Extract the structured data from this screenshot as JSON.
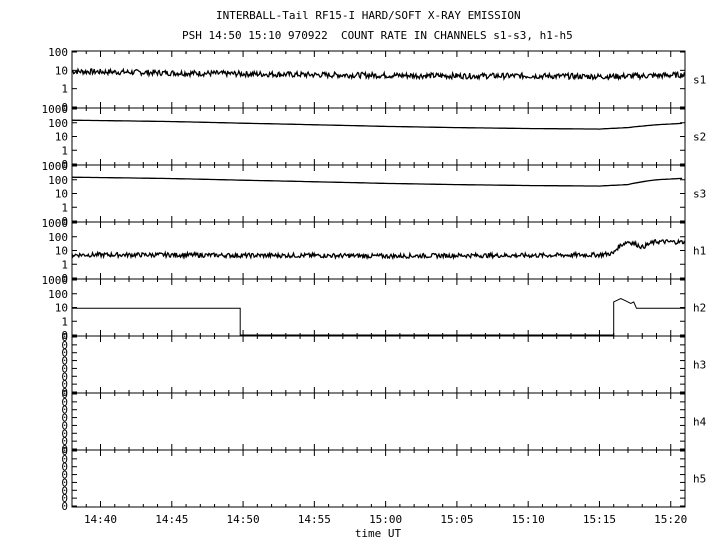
{
  "header": {
    "title": "INTERBALL-Tail RF15-I HARD/SOFT X-RAY EMISSION",
    "subtitle": "PSH 14:50 15:10 970922  COUNT RATE IN CHANNELS s1-s3, h1-h5"
  },
  "chart_data": {
    "type": "line",
    "title": "INTERBALL-Tail RF15-I HARD/SOFT X-RAY EMISSION",
    "subtitle": "PSH 14:50 15:10 970922  COUNT RATE IN CHANNELS s1-s3, h1-h5",
    "xlabel": "time UT",
    "x_ticks": [
      "14:40",
      "14:45",
      "14:50",
      "14:55",
      "15:00",
      "15:05",
      "15:10",
      "15:15",
      "15:20"
    ],
    "x_tick_minutes": [
      0,
      5,
      10,
      15,
      20,
      25,
      30,
      35,
      40
    ],
    "xlim_minutes": [
      -2.0,
      41.0
    ],
    "y_scale": "log",
    "grid": false,
    "panels": [
      {
        "name": "s1",
        "ylabels": [
          "100",
          "10",
          "1",
          "0"
        ],
        "ylim": [
          0.5,
          200
        ],
        "series": [
          {
            "x": [
              -2,
              0,
              5,
              10,
              15,
              20,
              25,
              30,
              35,
              38,
              41
            ],
            "y": [
              25,
              24,
              21,
              19,
              17,
              16,
              15,
              15,
              14,
              15,
              17
            ]
          }
        ]
      },
      {
        "name": "s2",
        "ylabels": [
          "1000",
          "100",
          "10",
          "1",
          "0"
        ],
        "ylim": [
          0.5,
          1000
        ],
        "series": [
          {
            "x": [
              -2,
              0,
              5,
              10,
              15,
              20,
              25,
              30,
              35,
              37,
              39,
              41
            ],
            "y": [
              230,
              220,
              190,
              150,
              120,
              95,
              80,
              70,
              65,
              80,
              120,
              150
            ]
          }
        ]
      },
      {
        "name": "s3",
        "ylabels": [
          "1000",
          "100",
          "10",
          "1",
          "0"
        ],
        "ylim": [
          0.5,
          1000
        ],
        "series": [
          {
            "x": [
              -2,
              0,
              5,
              10,
              15,
              20,
              25,
              30,
              35,
              37,
              39,
              41
            ],
            "y": [
              230,
              220,
              190,
              150,
              120,
              95,
              80,
              70,
              65,
              80,
              160,
              200
            ]
          }
        ]
      },
      {
        "name": "h1",
        "ylabels": [
          "1000",
          "100",
          "10",
          "1",
          "0"
        ],
        "ylim": [
          0.5,
          1000
        ],
        "series": [
          {
            "x": [
              -2,
              0,
              5,
              10,
              15,
              20,
              25,
              30,
              35,
              36,
              37,
              38,
              39,
              41
            ],
            "y": [
              12,
              12,
              12,
              11,
              11,
              10,
              11,
              11,
              12,
              15,
              80,
              35,
              80,
              75
            ]
          }
        ]
      },
      {
        "name": "h2",
        "ylabels": [
          "1000",
          "100",
          "10",
          "1",
          "0"
        ],
        "ylim": [
          0.5,
          1000
        ],
        "series": [
          {
            "x": [
              -2,
              9.8,
              9.8,
              36.0,
              36.0,
              36.5,
              36.8,
              37.2,
              37.4,
              37.6,
              37.6,
              41
            ],
            "y": [
              20,
              20,
              0,
              0,
              50,
              80,
              60,
              40,
              50,
              20,
              20,
              20
            ]
          }
        ]
      },
      {
        "name": "h3",
        "ylabels": [
          "0",
          "0",
          "0",
          "0",
          "0",
          "0",
          "0",
          "0"
        ],
        "ylim": [
          0,
          1
        ],
        "series": []
      },
      {
        "name": "h4",
        "ylabels": [
          "0",
          "0",
          "0",
          "0",
          "0",
          "0",
          "0",
          "0"
        ],
        "ylim": [
          0,
          1
        ],
        "series": []
      },
      {
        "name": "h5",
        "ylabels": [
          "0",
          "0",
          "0",
          "0",
          "0",
          "0",
          "0",
          "0"
        ],
        "ylim": [
          0,
          1
        ],
        "series": []
      }
    ]
  }
}
